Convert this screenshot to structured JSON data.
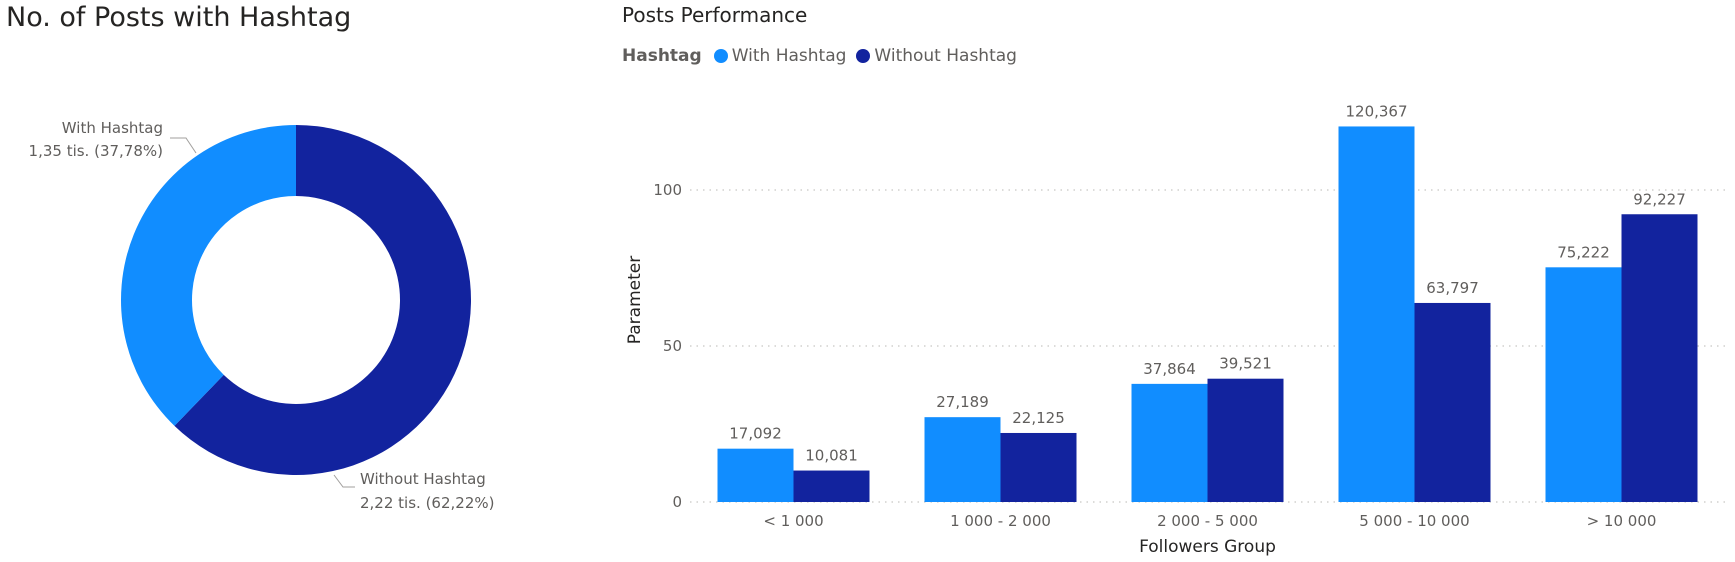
{
  "left_chart": {
    "title": "No. of Posts with Hashtag",
    "chart_data": {
      "type": "pie",
      "donut": true,
      "slices": [
        {
          "name": "With Hashtag",
          "value": 1350,
          "label_value": "1,35 tis. (37,78%)",
          "percent": 37.78,
          "color": "#118dff"
        },
        {
          "name": "Without Hashtag",
          "value": 2220,
          "label_value": "2,22 tis. (62,22%)",
          "percent": 62.22,
          "color": "#12239e"
        }
      ]
    }
  },
  "right_chart": {
    "title": "Posts Performance",
    "legend_title": "Hashtag",
    "chart_data": {
      "type": "bar",
      "categories": [
        "< 1 000",
        "1 000 - 2 000",
        "2 000 - 5 000",
        "5 000 - 10 000",
        "> 10 000"
      ],
      "series": [
        {
          "name": "With Hashtag",
          "color": "#118dff",
          "values": [
            17.092,
            27.189,
            37.864,
            120.367,
            75.222
          ],
          "labels": [
            "17,092",
            "27,189",
            "37,864",
            "120,367",
            "75,222"
          ]
        },
        {
          "name": "Without Hashtag",
          "color": "#12239e",
          "values": [
            10.081,
            22.125,
            39.521,
            63.797,
            92.227
          ],
          "labels": [
            "10,081",
            "22,125",
            "39,521",
            "63,797",
            "92,227"
          ]
        }
      ],
      "xlabel": "Followers Group",
      "ylabel": "Parameter",
      "yticks": [
        "0",
        "50",
        "100"
      ],
      "ytick_values": [
        0,
        50,
        100
      ],
      "ylim": [
        0,
        125
      ],
      "grid": true,
      "legend_position": "top-left"
    }
  }
}
